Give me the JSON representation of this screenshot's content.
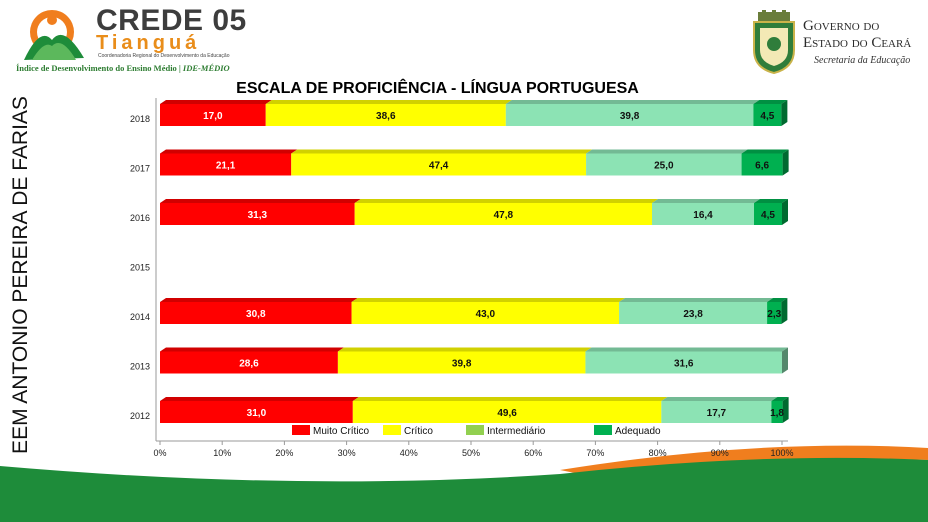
{
  "header": {
    "crede_title": "CREDE 05",
    "crede_city": "Tianguá",
    "crede_subtitle": "Coordenadoria Regional do Desenvolvimento da Educação",
    "ide_label": "Índice de Desenvolvimento do Ensino Médio",
    "ide_tag": "| IDE-MÉDIO",
    "gov_line1": "Governo do",
    "gov_line2": "Estado do Ceará",
    "gov_line3": "Secretaria da Educação"
  },
  "school_name": "EEM ANTONIO PEREIRA DE FARIAS",
  "colors": {
    "muito_critico": "#ff0000",
    "critico": "#ffff00",
    "intermediario": "#8ce3b4",
    "adequado": "#00b050",
    "legend_intermediario": "#92d050",
    "brand_green": "#1e8c3a",
    "brand_orange": "#f07e1e"
  },
  "chart_data": {
    "type": "bar",
    "orientation": "horizontal",
    "stacked": true,
    "title": "ESCALA DE PROFICIÊNCIA - LÍNGUA PORTUGUESA",
    "categories": [
      "2018",
      "2017",
      "2016",
      "2015",
      "2014",
      "2013",
      "2012"
    ],
    "series": [
      {
        "name": "Muito Crítico",
        "values": [
          17.0,
          21.1,
          31.3,
          null,
          30.8,
          28.6,
          31.0
        ],
        "labels": [
          "17,0",
          "21,1",
          "31,3",
          "",
          "30,8",
          "28,6",
          "31,0"
        ]
      },
      {
        "name": "Crítico",
        "values": [
          38.6,
          47.4,
          47.8,
          null,
          43.0,
          39.8,
          49.6
        ],
        "labels": [
          "38,6",
          "47,4",
          "47,8",
          "",
          "43,0",
          "39,8",
          "49,6"
        ]
      },
      {
        "name": "Intermediário",
        "values": [
          39.8,
          25.0,
          16.4,
          null,
          23.8,
          31.6,
          17.7
        ],
        "labels": [
          "39,8",
          "25,0",
          "16,4",
          "",
          "23,8",
          "31,6",
          "17,7"
        ]
      },
      {
        "name": "Adequado",
        "values": [
          4.5,
          6.6,
          4.5,
          null,
          2.3,
          0,
          1.8
        ],
        "labels": [
          "4,5",
          "6,6",
          "4,5",
          "",
          "2,3",
          "",
          "1,8"
        ]
      }
    ],
    "x_ticks": [
      "0%",
      "10%",
      "20%",
      "30%",
      "40%",
      "50%",
      "60%",
      "70%",
      "80%",
      "90%",
      "100%"
    ],
    "xlim": [
      0,
      100
    ],
    "legend_position": "bottom",
    "grid": false
  }
}
